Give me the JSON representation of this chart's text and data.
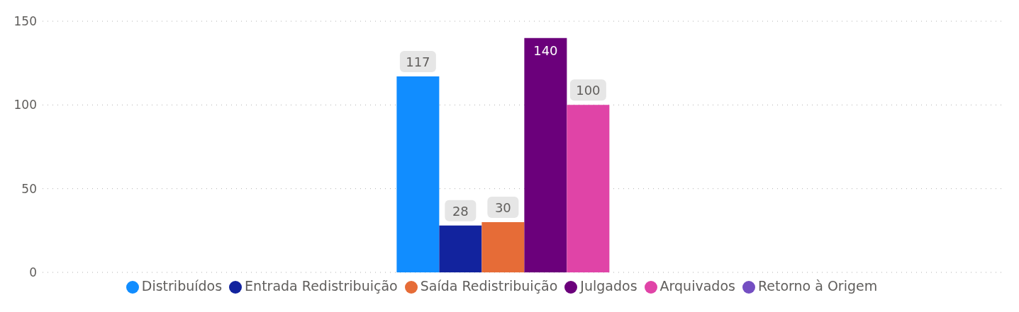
{
  "chart_data": {
    "type": "bar",
    "categories": [
      null
    ],
    "series": [
      {
        "name": "Distribuídos",
        "color": "#118dff",
        "values": [
          117
        ]
      },
      {
        "name": "Entrada Redistribuição",
        "color": "#12239e",
        "values": [
          28
        ]
      },
      {
        "name": "Saída Redistribuição",
        "color": "#e66c37",
        "values": [
          30
        ]
      },
      {
        "name": "Julgados",
        "color": "#6b007b",
        "values": [
          140
        ]
      },
      {
        "name": "Arquivados",
        "color": "#e044a7",
        "values": [
          100
        ]
      },
      {
        "name": "Retorno à Origem",
        "color": "#744ec2",
        "values": [
          null
        ]
      }
    ],
    "ylim": [
      0,
      150
    ],
    "yticks": [
      0,
      50,
      100,
      150
    ],
    "grid": "y",
    "legend": "bottom",
    "data_labels": true
  }
}
